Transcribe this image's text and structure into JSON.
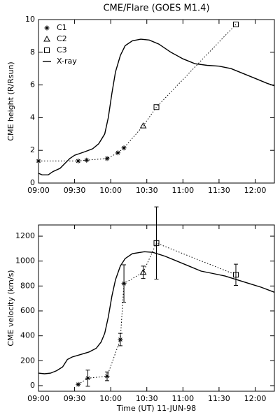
{
  "chart_data": [
    {
      "type": "line",
      "title": "CME/Flare (GOES M1.4)",
      "ylabel": "CME height (R/Rsun)",
      "xlim": [
        0,
        196
      ],
      "ylim": [
        0,
        10
      ],
      "yticks": [
        0,
        2,
        4,
        6,
        8,
        10
      ],
      "xticks": [
        {
          "value": 0,
          "label": "09:00"
        },
        {
          "value": 30,
          "label": "09:30"
        },
        {
          "value": 60,
          "label": "10:00"
        },
        {
          "value": 90,
          "label": "10:30"
        },
        {
          "value": 120,
          "label": "11:00"
        },
        {
          "value": 150,
          "label": "11:30"
        },
        {
          "value": 180,
          "label": "12:00"
        }
      ],
      "legend": "upper left",
      "series": [
        {
          "name": "C1",
          "marker": "star",
          "x": [
            0,
            33,
            40,
            57,
            66,
            71
          ],
          "values": [
            1.35,
            1.35,
            1.4,
            1.5,
            1.85,
            2.15
          ]
        },
        {
          "name": "C2",
          "marker": "triangle",
          "x": [
            87
          ],
          "values": [
            3.5
          ]
        },
        {
          "name": "C3",
          "marker": "square",
          "x": [
            98,
            164
          ],
          "values": [
            4.65,
            9.7
          ]
        },
        {
          "name": "X-ray",
          "marker": "line",
          "x": [
            0,
            3,
            8,
            12,
            18,
            22,
            26,
            30,
            38,
            45,
            50,
            55,
            58,
            61,
            64,
            68,
            72,
            78,
            85,
            92,
            100,
            110,
            120,
            130,
            140,
            150,
            160,
            170,
            180,
            190,
            196
          ],
          "values": [
            0.6,
            0.5,
            0.5,
            0.7,
            0.9,
            1.2,
            1.5,
            1.7,
            1.9,
            2.1,
            2.4,
            3.0,
            4.0,
            5.5,
            6.8,
            7.8,
            8.4,
            8.7,
            8.8,
            8.75,
            8.5,
            8.0,
            7.6,
            7.3,
            7.2,
            7.15,
            7.0,
            6.7,
            6.4,
            6.1,
            5.95
          ]
        }
      ]
    },
    {
      "type": "line",
      "ylabel": "CME velocity (km/s)",
      "xlabel": "Time (UT) 11-JUN-98",
      "xlim": [
        0,
        196
      ],
      "ylim": [
        -45,
        1290
      ],
      "yticks": [
        0,
        200,
        400,
        600,
        800,
        1000,
        1200
      ],
      "xticks": [
        {
          "value": 0,
          "label": "09:00"
        },
        {
          "value": 30,
          "label": "09:30"
        },
        {
          "value": 60,
          "label": "10:00"
        },
        {
          "value": 90,
          "label": "10:30"
        },
        {
          "value": 120,
          "label": "11:00"
        },
        {
          "value": 150,
          "label": "11:30"
        },
        {
          "value": 180,
          "label": "12:00"
        }
      ],
      "series": [
        {
          "marker": "star",
          "x": [
            33,
            41,
            57,
            68,
            71
          ],
          "values": [
            10,
            60,
            75,
            370,
            820
          ],
          "errors": [
            0,
            65,
            35,
            50,
            150
          ]
        },
        {
          "marker": "triangle",
          "x": [
            87
          ],
          "values": [
            910
          ],
          "errors": [
            50
          ]
        },
        {
          "marker": "square",
          "x": [
            98,
            164
          ],
          "values": [
            1145,
            890
          ],
          "errors": [
            290,
            85
          ]
        },
        {
          "marker": "line",
          "x": [
            0,
            5,
            10,
            15,
            20,
            24,
            28,
            35,
            42,
            48,
            52,
            55,
            58,
            61,
            64,
            68,
            72,
            78,
            88,
            95,
            105,
            115,
            125,
            135,
            145,
            155,
            165,
            175,
            185,
            196
          ],
          "values": [
            100,
            95,
            100,
            120,
            150,
            210,
            230,
            250,
            270,
            300,
            350,
            420,
            550,
            720,
            850,
            960,
            1020,
            1060,
            1075,
            1070,
            1040,
            1000,
            960,
            920,
            900,
            880,
            850,
            820,
            790,
            750
          ]
        }
      ]
    }
  ]
}
